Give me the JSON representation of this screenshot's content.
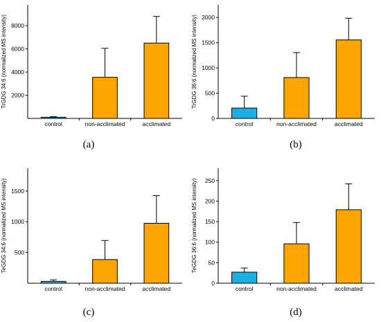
{
  "colors": {
    "control": "#1cb0e6",
    "treated": "#ffa500",
    "axis": "#000000"
  },
  "chart_data": [
    {
      "panel": "(a)",
      "panel_letter": "a",
      "type": "bar",
      "ylabel": "TrGDG 34:6 (normalized MS intensity)",
      "categories": [
        "control",
        "non-acclimated",
        "acclimated"
      ],
      "values": [
        100,
        3550,
        6500
      ],
      "errors": [
        50,
        2500,
        2300
      ],
      "ylim": [
        0,
        9800
      ],
      "yticks": [
        2000,
        4000,
        6000,
        8000
      ],
      "ytick_labels": [
        "2000",
        "4000",
        "6000",
        "8000"
      ],
      "grid": false,
      "legend": "none"
    },
    {
      "panel": "(b)",
      "panel_letter": "b",
      "type": "bar",
      "ylabel": "TrGDG 36:6 (normalized MS intensity)",
      "categories": [
        "control",
        "non-acclimated",
        "acclimated"
      ],
      "values": [
        205,
        810,
        1555
      ],
      "errors": [
        235,
        495,
        430
      ],
      "ylim": [
        0,
        2250
      ],
      "yticks": [
        0,
        500,
        1000,
        1500,
        2000
      ],
      "ytick_labels": [
        "0",
        "500",
        "1000",
        "1500",
        "2000"
      ],
      "grid": false,
      "legend": "none"
    },
    {
      "panel": "(c)",
      "panel_letter": "c",
      "type": "bar",
      "ylabel": "TeGDG 34:6 (normalized MS intensity)",
      "categories": [
        "control",
        "non-acclimated",
        "acclimated"
      ],
      "values": [
        30,
        385,
        975
      ],
      "errors": [
        25,
        310,
        450
      ],
      "ylim": [
        0,
        1870
      ],
      "yticks": [
        500,
        1000,
        1500
      ],
      "ytick_labels": [
        "500",
        "1000",
        "1500"
      ],
      "grid": false,
      "legend": "none"
    },
    {
      "panel": "(d)",
      "panel_letter": "d",
      "type": "bar",
      "ylabel": "TeGDG 36:6 (normalized MS intensity)",
      "categories": [
        "control",
        "non-acclimated",
        "acclimated"
      ],
      "values": [
        27,
        96,
        179
      ],
      "errors": [
        10,
        52,
        63
      ],
      "ylim": [
        0,
        280
      ],
      "yticks": [
        0,
        50,
        100,
        150,
        200,
        250
      ],
      "ytick_labels": [
        "0",
        "50",
        "100",
        "150",
        "200",
        "250"
      ],
      "grid": false,
      "legend": "none"
    }
  ]
}
